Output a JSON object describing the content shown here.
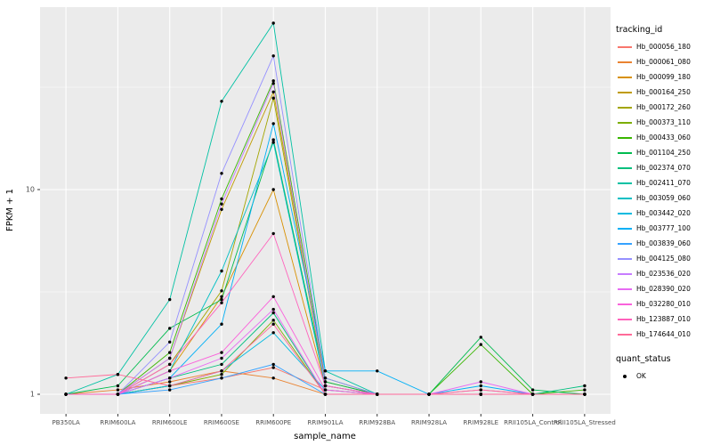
{
  "chart_data": {
    "type": "line",
    "title": "",
    "xlabel": "sample_name",
    "ylabel": "FPKM + 1",
    "y_scale": "log10",
    "y_ticks": [
      1,
      10
    ],
    "y_tick_labels": [
      "1",
      "10"
    ],
    "y_minor_ticks": [
      3.1623,
      31.6228
    ],
    "ylim": [
      0.8,
      78
    ],
    "grid": true,
    "legend_position": "right",
    "panel_bg": "#EBEBEB",
    "grid_major_color": "#FFFFFF",
    "grid_minor_color": "#FFFFFF",
    "point_color": "#000000",
    "categories": [
      "PB350LA",
      "RRIM600LA",
      "RRIM600LE",
      "RRIM600SE",
      "RRIM600PE",
      "RRIM901LA",
      "RRIM928BA",
      "RRIM928LA",
      "RRIM928LE",
      "RRII105LA_Control",
      "RRII105LA_Stressed"
    ],
    "series": [
      {
        "name": "Hb_000056_180",
        "color": "#F8766D",
        "values": [
          1.0,
          1.0,
          1.1,
          1.2,
          1.35,
          1.05,
          1.0,
          1.0,
          1.0,
          1.0,
          1.0
        ]
      },
      {
        "name": "Hb_000061_080",
        "color": "#EA8331",
        "values": [
          1.0,
          1.05,
          1.15,
          1.3,
          1.2,
          1.0,
          1.0,
          1.0,
          1.0,
          1.0,
          1.0
        ]
      },
      {
        "name": "Hb_000099_180",
        "color": "#D89000",
        "values": [
          1.0,
          1.0,
          1.3,
          3.0,
          10.0,
          1.1,
          1.0,
          1.0,
          1.05,
          1.0,
          1.0
        ]
      },
      {
        "name": "Hb_000164_250",
        "color": "#C09B00",
        "values": [
          1.0,
          1.0,
          1.5,
          8.0,
          30.0,
          1.15,
          1.0,
          1.0,
          1.0,
          1.0,
          1.0
        ]
      },
      {
        "name": "Hb_000172_260",
        "color": "#A3A500",
        "values": [
          1.0,
          1.0,
          1.4,
          3.2,
          28.0,
          1.1,
          1.0,
          1.0,
          1.0,
          1.0,
          1.0
        ]
      },
      {
        "name": "Hb_000373_110",
        "color": "#7CAE00",
        "values": [
          1.0,
          1.0,
          1.1,
          1.25,
          2.3,
          1.0,
          1.0,
          1.0,
          1.0,
          1.0,
          1.0
        ]
      },
      {
        "name": "Hb_000433_060",
        "color": "#39B600",
        "values": [
          1.0,
          1.0,
          1.6,
          9.0,
          34.0,
          1.2,
          1.0,
          1.0,
          1.75,
          1.0,
          1.05
        ]
      },
      {
        "name": "Hb_001104_250",
        "color": "#00BB4E",
        "values": [
          1.0,
          1.1,
          2.1,
          2.9,
          17.5,
          1.15,
          1.0,
          1.0,
          1.9,
          1.05,
          1.0
        ]
      },
      {
        "name": "Hb_002374_070",
        "color": "#00BF7D",
        "values": [
          1.0,
          1.0,
          1.2,
          1.4,
          2.5,
          1.0,
          1.0,
          1.0,
          1.0,
          1.0,
          1.1
        ]
      },
      {
        "name": "Hb_002411_070",
        "color": "#00C1A3",
        "values": [
          1.0,
          1.25,
          2.9,
          27.0,
          65.0,
          1.3,
          1.0,
          1.0,
          1.0,
          1.0,
          1.0
        ]
      },
      {
        "name": "Hb_003059_060",
        "color": "#00BFC4",
        "values": [
          1.0,
          1.0,
          1.3,
          4.0,
          17.0,
          1.1,
          1.0,
          1.0,
          1.0,
          1.0,
          1.0
        ]
      },
      {
        "name": "Hb_003442_020",
        "color": "#00BAE0",
        "values": [
          1.0,
          1.0,
          1.1,
          1.3,
          2.0,
          1.05,
          1.0,
          1.0,
          1.0,
          1.0,
          1.0
        ]
      },
      {
        "name": "Hb_003777_100",
        "color": "#00B0F6",
        "values": [
          1.0,
          1.0,
          1.2,
          2.2,
          21.0,
          1.3,
          1.3,
          1.0,
          1.1,
          1.0,
          1.0
        ]
      },
      {
        "name": "Hb_003839_060",
        "color": "#35A2FF",
        "values": [
          1.0,
          1.0,
          1.05,
          1.2,
          1.4,
          1.0,
          1.0,
          1.0,
          1.0,
          1.0,
          1.0
        ]
      },
      {
        "name": "Hb_004125_080",
        "color": "#9590FF",
        "values": [
          1.0,
          1.0,
          1.8,
          12.0,
          45.0,
          1.2,
          1.0,
          1.0,
          1.0,
          1.0,
          1.0
        ]
      },
      {
        "name": "Hb_023536_020",
        "color": "#C77CFF",
        "values": [
          1.0,
          1.0,
          1.5,
          8.5,
          33.0,
          1.1,
          1.0,
          1.0,
          1.0,
          1.0,
          1.0
        ]
      },
      {
        "name": "Hb_028390_020",
        "color": "#E76BF3",
        "values": [
          1.0,
          1.0,
          1.2,
          1.5,
          2.6,
          1.0,
          1.0,
          1.0,
          1.15,
          1.0,
          1.0
        ]
      },
      {
        "name": "Hb_032280_010",
        "color": "#FA62DB",
        "values": [
          1.0,
          1.0,
          1.3,
          1.6,
          3.0,
          1.05,
          1.0,
          1.0,
          1.0,
          1.0,
          1.0
        ]
      },
      {
        "name": "Hb_123887_010",
        "color": "#FF62BC",
        "values": [
          1.0,
          1.0,
          1.4,
          2.8,
          6.1,
          1.1,
          1.0,
          1.0,
          1.05,
          1.0,
          1.0
        ]
      },
      {
        "name": "Hb_174644_010",
        "color": "#FF6A98",
        "values": [
          1.2,
          1.25,
          1.1,
          1.3,
          2.2,
          1.0,
          1.0,
          1.0,
          1.0,
          1.0,
          1.0
        ]
      }
    ],
    "legend": {
      "series_title": "tracking_id",
      "status_title": "quant_status",
      "status_items": [
        {
          "label": "OK",
          "marker": "point",
          "color": "#000000"
        }
      ]
    }
  }
}
